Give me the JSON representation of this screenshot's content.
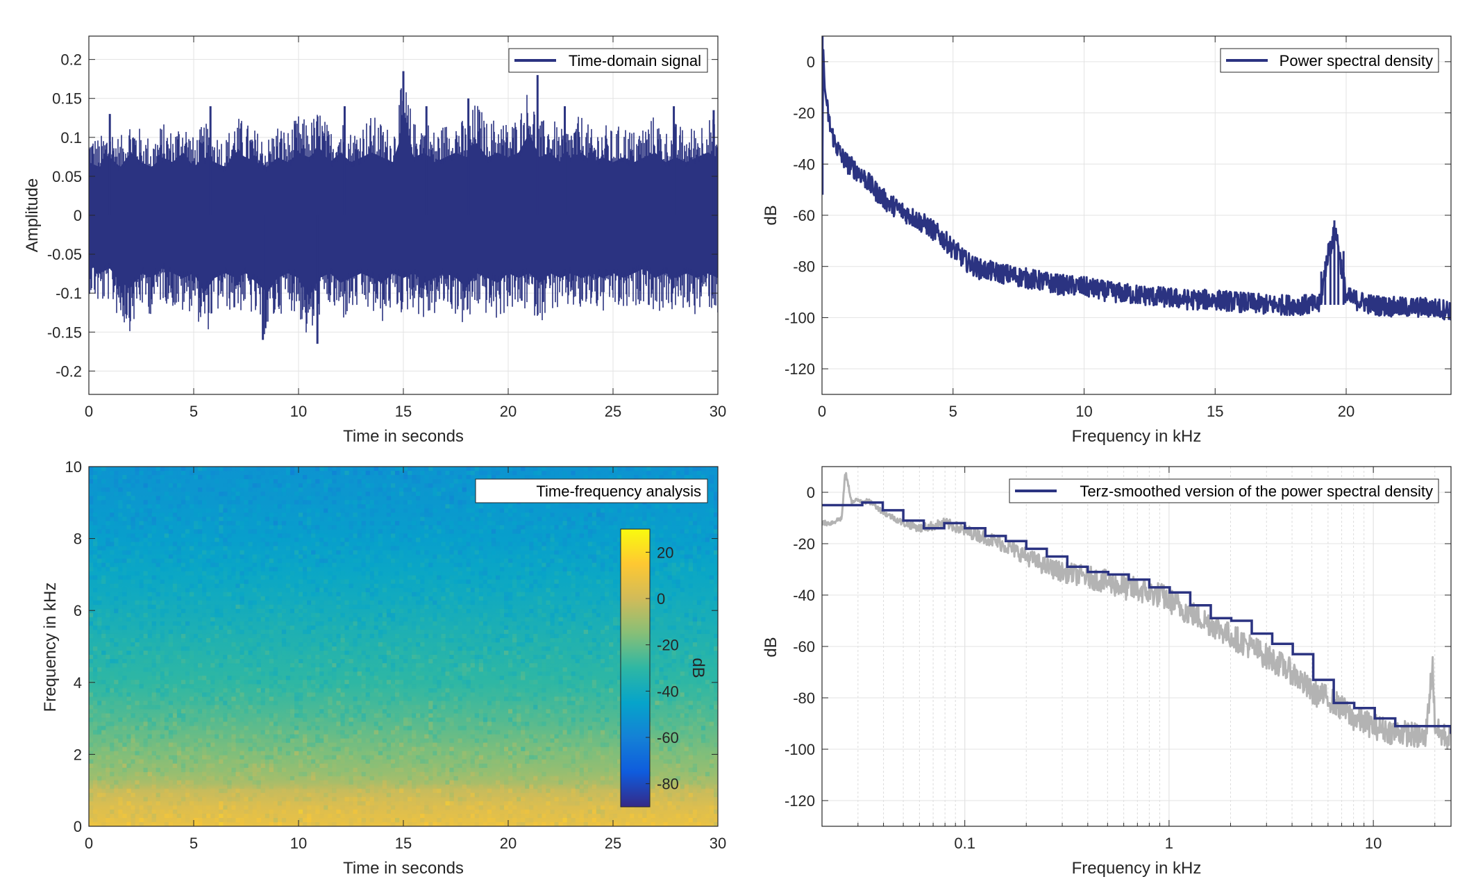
{
  "chart_data": [
    {
      "id": "time-domain",
      "type": "line",
      "xlabel": "Time in seconds",
      "ylabel": "Amplitude",
      "xlim": [
        0,
        30
      ],
      "ylim": [
        -0.23,
        0.23
      ],
      "xticks": [
        0,
        5,
        10,
        15,
        20,
        25,
        30
      ],
      "xticklabels": [
        "0",
        "5",
        "10",
        "15",
        "20",
        "25",
        "30"
      ],
      "yticks": [
        0.2,
        0.15,
        0.1,
        0.05,
        0,
        -0.05,
        -0.1,
        -0.15,
        -0.2
      ],
      "yticklabels": [
        "0.2",
        "0.15",
        "0.1",
        "0.05",
        "0",
        "-0.05",
        "-0.1",
        "-0.15",
        "-0.2"
      ],
      "grid": true,
      "legend_position": "top-right",
      "series": [
        {
          "name": "Time-domain signal",
          "color": "#2b3381",
          "envelope": {
            "t": [
              0,
              0.5,
              1,
              1.5,
              2,
              2.5,
              3,
              3.5,
              4,
              4.5,
              5,
              5.5,
              6,
              6.5,
              7,
              7.5,
              8,
              8.5,
              9,
              9.5,
              10,
              10.5,
              11,
              11.5,
              12,
              12.5,
              13,
              13.5,
              14,
              14.5,
              15,
              15.5,
              16,
              16.5,
              17,
              17.5,
              18,
              18.5,
              19,
              19.5,
              20,
              20.5,
              21,
              21.5,
              22,
              22.5,
              23,
              23.5,
              24,
              24.5,
              25,
              25.5,
              26,
              26.5,
              27,
              27.5,
              28,
              28.5,
              29,
              29.5,
              30
            ],
            "max": [
              0.11,
              0.1,
              0.12,
              0.1,
              0.13,
              0.11,
              0.1,
              0.12,
              0.11,
              0.13,
              0.1,
              0.12,
              0.11,
              0.1,
              0.13,
              0.12,
              0.11,
              0.1,
              0.12,
              0.11,
              0.13,
              0.12,
              0.14,
              0.11,
              0.13,
              0.11,
              0.12,
              0.13,
              0.12,
              0.11,
              0.18,
              0.12,
              0.13,
              0.11,
              0.12,
              0.13,
              0.12,
              0.15,
              0.12,
              0.13,
              0.12,
              0.13,
              0.17,
              0.12,
              0.13,
              0.11,
              0.12,
              0.13,
              0.11,
              0.12,
              0.11,
              0.12,
              0.11,
              0.12,
              0.13,
              0.11,
              0.12,
              0.11,
              0.12,
              0.13,
              0.12
            ],
            "min": [
              -0.1,
              -0.12,
              -0.11,
              -0.14,
              -0.15,
              -0.12,
              -0.13,
              -0.11,
              -0.12,
              -0.13,
              -0.12,
              -0.16,
              -0.13,
              -0.12,
              -0.13,
              -0.12,
              -0.14,
              -0.16,
              -0.13,
              -0.12,
              -0.13,
              -0.17,
              -0.13,
              -0.12,
              -0.14,
              -0.13,
              -0.12,
              -0.13,
              -0.14,
              -0.12,
              -0.13,
              -0.12,
              -0.14,
              -0.13,
              -0.12,
              -0.13,
              -0.15,
              -0.12,
              -0.13,
              -0.14,
              -0.12,
              -0.13,
              -0.12,
              -0.14,
              -0.12,
              -0.13,
              -0.12,
              -0.13,
              -0.12,
              -0.13,
              -0.12,
              -0.13,
              -0.12,
              -0.11,
              -0.13,
              -0.12,
              -0.13,
              -0.12,
              -0.13,
              -0.12,
              -0.13
            ]
          },
          "spikes": [
            [
              1.0,
              0.13
            ],
            [
              5.8,
              0.14
            ],
            [
              8.3,
              -0.16
            ],
            [
              10.9,
              -0.165
            ],
            [
              12.2,
              0.14
            ],
            [
              15.0,
              0.185
            ],
            [
              16.1,
              0.14
            ],
            [
              18.1,
              0.15
            ],
            [
              21.4,
              0.18
            ],
            [
              22.7,
              0.14
            ],
            [
              27.9,
              0.14
            ],
            [
              29.8,
              0.135
            ]
          ]
        }
      ]
    },
    {
      "id": "psd",
      "type": "line",
      "xlabel": "Frequency in kHz",
      "ylabel": "dB",
      "xlim": [
        0,
        24
      ],
      "ylim": [
        -130,
        10
      ],
      "xticks": [
        0,
        5,
        10,
        15,
        20
      ],
      "xticklabels": [
        "0",
        "5",
        "10",
        "15",
        "20"
      ],
      "yticks": [
        0,
        -20,
        -40,
        -60,
        -80,
        -100,
        -120
      ],
      "yticklabels": [
        "0",
        "-20",
        "-40",
        "-60",
        "-80",
        "-100",
        "-120"
      ],
      "grid": true,
      "legend_position": "top-right",
      "series": [
        {
          "name": "Power spectral density",
          "color": "#2b3381",
          "x": [
            0,
            0.05,
            0.1,
            0.2,
            0.3,
            0.5,
            0.75,
            1.0,
            1.5,
            2.0,
            2.5,
            3.0,
            3.5,
            4.0,
            4.5,
            5.0,
            5.5,
            6.0,
            7.0,
            8.0,
            9.0,
            10.0,
            11.0,
            12.0,
            13.0,
            14.0,
            15.0,
            16.0,
            17.0,
            18.0,
            19.0,
            19.3,
            19.6,
            20.0,
            21.0,
            22.0,
            23.0,
            24.0
          ],
          "y": [
            -50,
            5,
            -10,
            -18,
            -25,
            -32,
            -37,
            -40,
            -44,
            -50,
            -55,
            -58,
            -61,
            -64,
            -68,
            -73,
            -78,
            -81,
            -83,
            -85,
            -87,
            -88,
            -90,
            -91,
            -92,
            -93,
            -93,
            -94,
            -95,
            -95,
            -95,
            -75,
            -66,
            -92,
            -95,
            -96,
            -96,
            -97
          ],
          "band_width": 4
        }
      ]
    },
    {
      "id": "spectrogram",
      "type": "heatmap",
      "xlabel": "Time in seconds",
      "ylabel": "Frequency in kHz",
      "xlim": [
        0,
        30
      ],
      "ylim": [
        0,
        10
      ],
      "xticks": [
        0,
        5,
        10,
        15,
        20,
        25,
        30
      ],
      "xticklabels": [
        "0",
        "5",
        "10",
        "15",
        "20",
        "25",
        "30"
      ],
      "yticks": [
        10,
        8,
        6,
        4,
        2,
        0
      ],
      "yticklabels": [
        "10",
        "8",
        "6",
        "4",
        "2",
        "0"
      ],
      "legend_position": "top-right",
      "legend_label": "Time-frequency analysis",
      "colorbar": {
        "label": "dB",
        "range": [
          -90,
          30
        ],
        "ticks": [
          20,
          0,
          -20,
          -40,
          -60,
          -80
        ],
        "ticklabels": [
          "20",
          "0",
          "-20",
          "-40",
          "-60",
          "-80"
        ]
      },
      "level_by_frequency": {
        "f": [
          0,
          0.5,
          1.0,
          1.2,
          1.5,
          2.0,
          2.5,
          3.0,
          4.0,
          5.0,
          6.0,
          7.0,
          8.0,
          9.0,
          10.0
        ],
        "db": [
          8,
          4,
          -2,
          -8,
          -12,
          -16,
          -20,
          -24,
          -30,
          -34,
          -39,
          -43,
          -47,
          -50,
          -52
        ]
      }
    },
    {
      "id": "terz",
      "type": "line",
      "xlabel": "Frequency in kHz",
      "ylabel": "dB",
      "xscale": "log",
      "xlim": [
        0.02,
        24
      ],
      "ylim": [
        -130,
        10
      ],
      "xticks": [
        0.1,
        1,
        10
      ],
      "xticklabels": [
        "0.1",
        "1",
        "10"
      ],
      "yticks": [
        0,
        -20,
        -40,
        -60,
        -80,
        -100,
        -120
      ],
      "yticklabels": [
        "0",
        "-20",
        "-40",
        "-60",
        "-80",
        "-100",
        "-120"
      ],
      "grid": true,
      "legend_position": "top-right",
      "series": [
        {
          "name": "",
          "color": "#b3b3b3",
          "x": [
            0.02,
            0.022,
            0.025,
            0.026,
            0.028,
            0.03,
            0.035,
            0.04,
            0.05,
            0.06,
            0.08,
            0.1,
            0.13,
            0.16,
            0.2,
            0.25,
            0.3,
            0.4,
            0.5,
            0.6,
            0.7,
            0.8,
            0.9,
            1.0,
            1.2,
            1.5,
            2.0,
            2.5,
            3.0,
            4.0,
            5.0,
            6.0,
            7.0,
            8.0,
            10.0,
            12.0,
            15.0,
            18.0,
            19.5,
            20.0,
            21.0,
            24.0
          ],
          "y": [
            -12,
            -12,
            -10,
            8,
            -4,
            -3,
            -4,
            -8,
            -12,
            -14,
            -12,
            -15,
            -18,
            -21,
            -25,
            -29,
            -31,
            -33,
            -35,
            -37,
            -38,
            -39,
            -40,
            -42,
            -46,
            -50,
            -56,
            -60,
            -64,
            -70,
            -78,
            -80,
            -84,
            -88,
            -91,
            -93,
            -94,
            -96,
            -66,
            -90,
            -94,
            -96
          ],
          "band_width": 5
        },
        {
          "name": "Terz-smoothed version of the power spectral density",
          "color": "#2b3381",
          "step": true,
          "edges": [
            0.02,
            0.03149,
            0.03968,
            0.05,
            0.063,
            0.07937,
            0.1,
            0.126,
            0.1587,
            0.2,
            0.252,
            0.3175,
            0.4,
            0.504,
            0.635,
            0.8,
            1.008,
            1.27,
            1.6,
            2.016,
            2.54,
            3.2,
            4.032,
            5.08,
            6.4,
            8.064,
            10.16,
            12.8,
            24
          ],
          "values": [
            -5,
            -4,
            -7,
            -11,
            -14,
            -12,
            -14,
            -17,
            -19,
            -22,
            -25,
            -29,
            -31,
            -32,
            -34,
            -37,
            -39,
            -44,
            -49,
            -50,
            -55,
            -59,
            -63,
            -73,
            -82,
            -84,
            -88,
            -91,
            -94
          ]
        }
      ]
    }
  ]
}
